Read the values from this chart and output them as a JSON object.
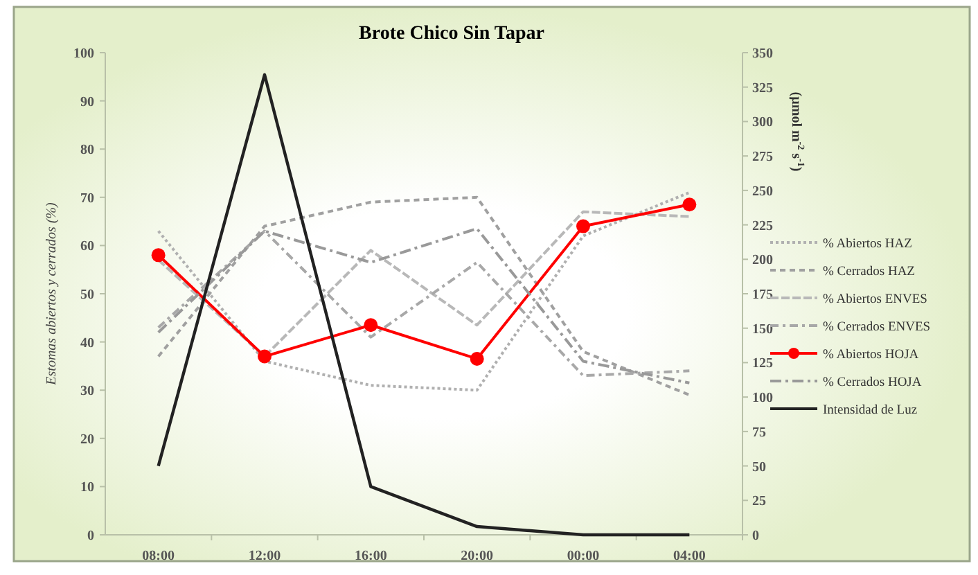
{
  "chart_data": {
    "type": "line",
    "title": "Brote Chico Sin Tapar",
    "ylabel": "Estomas abiertos y cerrados (%)",
    "y2label": "(µmol m$^{-2}$ s$^{-1}$)",
    "categories": [
      "08:00",
      "12:00",
      "16:00",
      "20:00",
      "00:00",
      "04:00"
    ],
    "ylim": [
      0,
      100
    ],
    "yticks": [
      0,
      10,
      20,
      30,
      40,
      50,
      60,
      70,
      80,
      90,
      100
    ],
    "y2lim": [
      0,
      350
    ],
    "y2ticks": [
      0,
      25,
      50,
      75,
      100,
      125,
      150,
      175,
      200,
      225,
      250,
      275,
      300,
      325,
      350
    ],
    "legend": "right",
    "grid": false,
    "series": [
      {
        "name": "% Abiertos HAZ",
        "color": "#b0b0b0",
        "line_style": "dotted",
        "marker": "none",
        "values": [
          63,
          36,
          31,
          30,
          62,
          71
        ]
      },
      {
        "name": "% Cerrados HAZ",
        "color": "#a0a0a0",
        "line_style": "dashed",
        "marker": "none",
        "values": [
          37,
          64,
          69,
          70,
          38,
          29
        ]
      },
      {
        "name": "% Abiertos ENVES",
        "color": "#b8b8b8",
        "line_style": "dashed",
        "marker": "none",
        "values": [
          57,
          37,
          59,
          43.5,
          67,
          66
        ]
      },
      {
        "name": "% Cerrados ENVES",
        "color": "#a8a8a8",
        "line_style": "dashed",
        "marker": "none",
        "values": [
          43,
          63,
          41,
          56.5,
          33,
          34
        ]
      },
      {
        "name": "% Abiertos HOJA",
        "color": "#ff0000",
        "line_style": "solid",
        "marker": "circle",
        "values": [
          58,
          37,
          43.5,
          36.5,
          64,
          68.5
        ]
      },
      {
        "name": "% Cerrados HOJA",
        "color": "#999999",
        "line_style": "dashed",
        "marker": "none",
        "values": [
          42,
          63,
          56.5,
          63.5,
          36,
          31.5
        ]
      },
      {
        "name": "Intensidad de Luz",
        "color": "#222222",
        "line_style": "solid",
        "marker": "none",
        "axis": "y2",
        "values": [
          50,
          334,
          35,
          6,
          0,
          0
        ]
      }
    ]
  }
}
